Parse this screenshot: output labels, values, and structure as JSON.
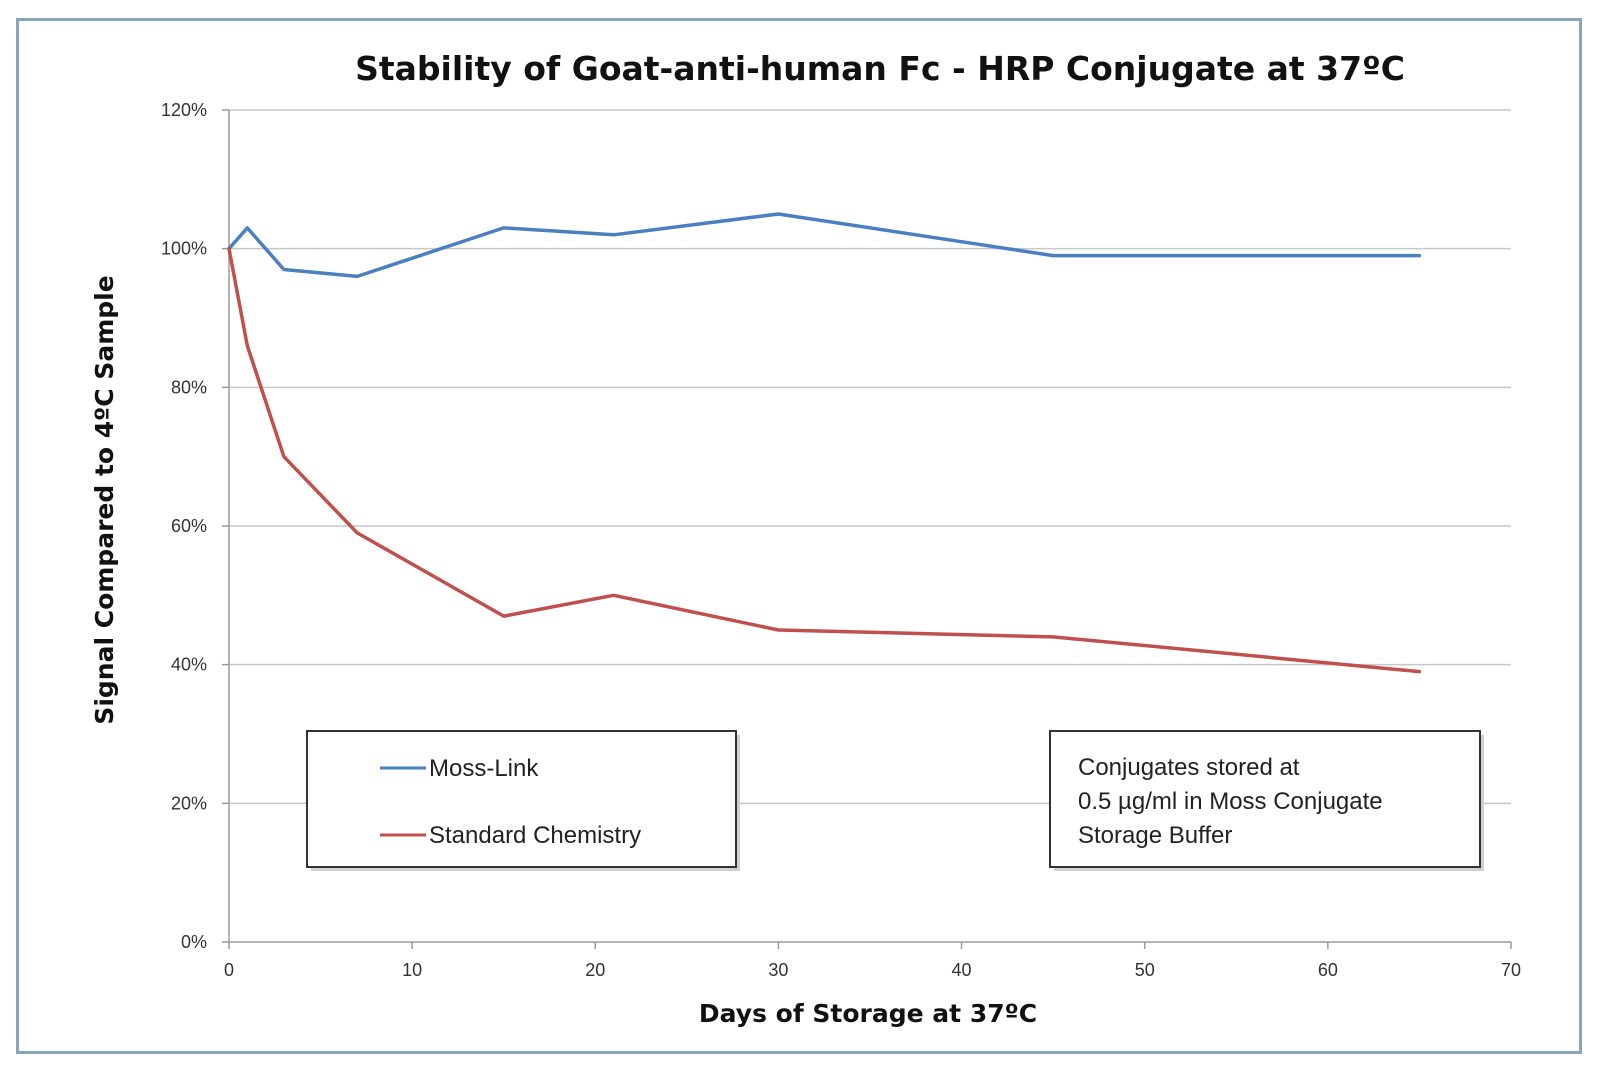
{
  "chart_data": {
    "type": "line",
    "title": "Stability of Goat-anti-human Fc - HRP Conjugate at 37ºC",
    "xlabel": "Days of Storage at 37ºC",
    "ylabel": "Signal Compared to 4ºC Sample",
    "xlim": [
      0,
      70
    ],
    "ylim": [
      0,
      1.2
    ],
    "x_ticks": [
      "0",
      "10",
      "20",
      "30",
      "40",
      "50",
      "60",
      "70"
    ],
    "y_ticks": [
      "0%",
      "20%",
      "40%",
      "60%",
      "80%",
      "100%",
      "120%"
    ],
    "grid": "horizontal",
    "legend_position": "bottom-left",
    "series": [
      {
        "name": "Moss-Link",
        "color": "#4a7fc1",
        "x": [
          0,
          1,
          3,
          7,
          15,
          21,
          30,
          45,
          65
        ],
        "y": [
          1.0,
          1.03,
          0.97,
          0.96,
          1.03,
          1.02,
          1.05,
          0.99,
          0.99
        ]
      },
      {
        "name": "Standard Chemistry",
        "color": "#c0504d",
        "x": [
          0,
          1,
          3,
          7,
          15,
          21,
          30,
          45,
          65
        ],
        "y": [
          1.0,
          0.86,
          0.7,
          0.59,
          0.47,
          0.5,
          0.45,
          0.44,
          0.39
        ]
      }
    ],
    "annotation": [
      "Conjugates stored at",
      "0.5 µg/ml in Moss Conjugate",
      "Storage Buffer"
    ]
  }
}
